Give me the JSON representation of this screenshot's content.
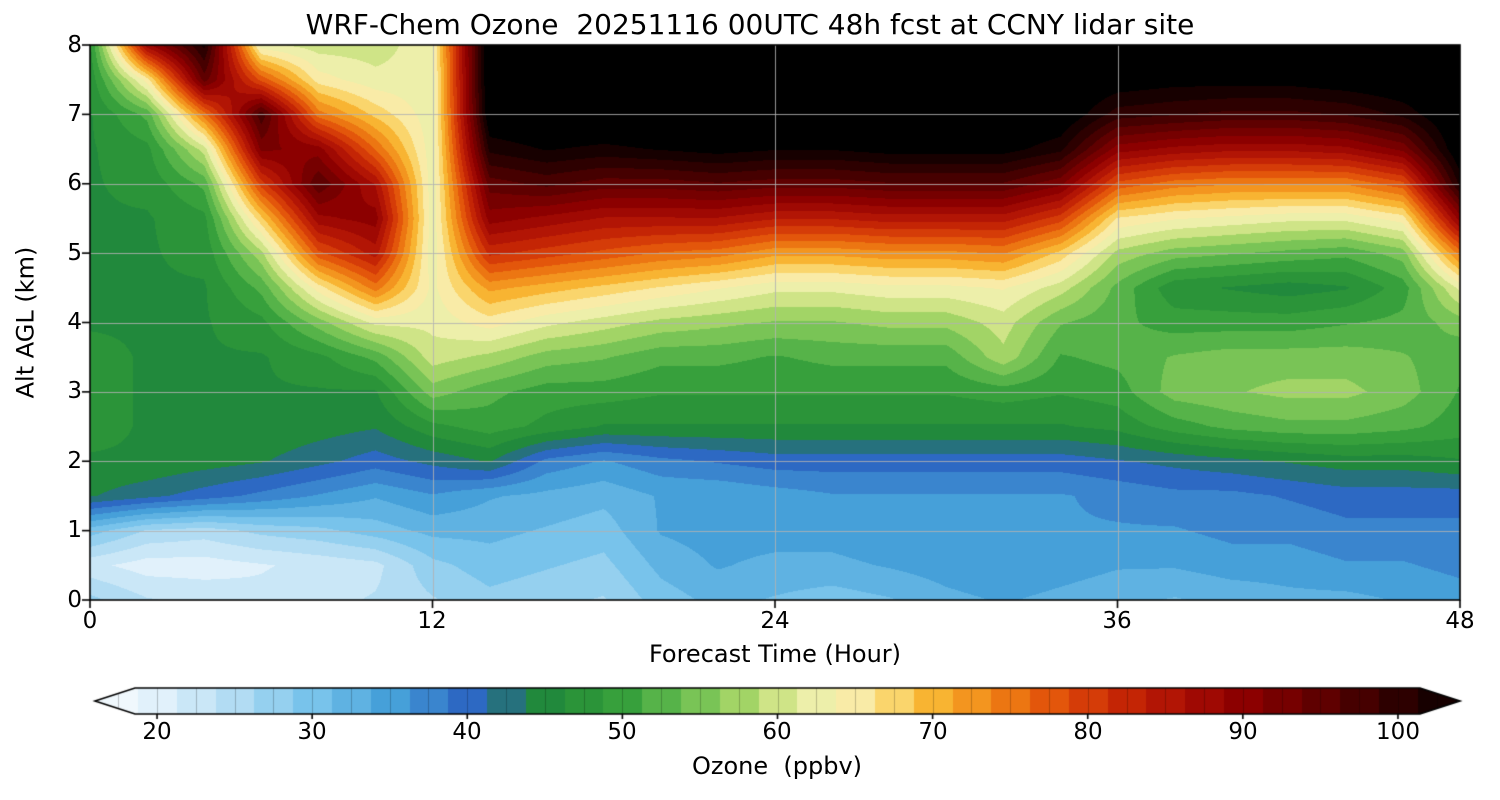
{
  "chart_data": {
    "type": "heatmap",
    "title": "WRF-Chem Ozone  20251116 00UTC 48h fcst at CCNY lidar site",
    "xlabel": "Forecast Time (Hour)",
    "ylabel": "Alt AGL (km)",
    "colorbar_label": "Ozone  (ppbv)",
    "x_range": [
      0,
      48
    ],
    "y_range": [
      0,
      8
    ],
    "x_ticks": [
      0,
      12,
      24,
      36,
      48
    ],
    "y_ticks": [
      0,
      1,
      2,
      3,
      4,
      5,
      6,
      7,
      8
    ],
    "colorbar_ticks": [
      20,
      30,
      40,
      50,
      60,
      70,
      80,
      90,
      100
    ],
    "colorbar_range": [
      16,
      104
    ],
    "contour_interval_ppbv": 2.5,
    "grid_on": true,
    "grid": {
      "hours": [
        0,
        2,
        4,
        6,
        8,
        10,
        12,
        14,
        16,
        18,
        20,
        22,
        24,
        26,
        28,
        30,
        32,
        34,
        36,
        38,
        40,
        42,
        44,
        46,
        48
      ],
      "altitudes_km": [
        0,
        0.5,
        1,
        1.5,
        2,
        2.5,
        3,
        3.5,
        4,
        4.5,
        5,
        5.5,
        6,
        6.5,
        7,
        7.5,
        8
      ],
      "ozone_ppbv": [
        [
          27,
          22,
          30,
          44,
          46,
          47,
          47,
          47,
          46,
          46,
          46,
          46,
          46,
          46,
          46,
          47,
          48
        ],
        [
          24,
          20,
          26,
          42,
          46,
          46,
          46,
          46,
          46,
          46,
          46,
          46,
          47,
          48,
          52,
          65,
          88
        ],
        [
          23,
          20,
          25,
          40,
          45,
          46,
          46,
          46,
          46,
          46,
          47,
          48,
          52,
          60,
          75,
          95,
          102
        ],
        [
          22,
          21,
          27,
          38,
          44,
          46,
          46,
          46,
          48,
          52,
          58,
          68,
          80,
          92,
          98,
          78,
          62
        ],
        [
          23,
          22,
          28,
          36,
          42,
          45,
          46,
          48,
          55,
          65,
          78,
          88,
          96,
          90,
          75,
          65,
          60
        ],
        [
          24,
          23,
          30,
          34,
          40,
          44,
          46,
          52,
          62,
          75,
          85,
          90,
          86,
          76,
          68,
          62,
          60
        ],
        [
          26,
          28,
          32,
          36,
          42,
          48,
          55,
          60,
          62,
          63,
          62,
          62,
          62,
          62,
          62,
          62,
          63
        ],
        [
          28,
          30,
          32,
          34,
          44,
          50,
          52,
          58,
          65,
          72,
          82,
          90,
          95,
          102,
          107,
          108,
          108
        ],
        [
          27,
          29,
          31,
          33,
          38,
          48,
          50,
          55,
          62,
          70,
          80,
          88,
          97,
          104,
          108,
          108,
          108
        ],
        [
          26,
          28,
          30,
          32,
          36,
          46,
          50,
          54,
          60,
          68,
          78,
          86,
          95,
          103,
          108,
          108,
          108
        ],
        [
          30,
          32,
          34,
          34,
          38,
          46,
          49,
          52,
          58,
          66,
          76,
          86,
          95,
          104,
          108,
          108,
          108
        ],
        [
          32,
          34,
          35,
          34,
          39,
          46,
          49,
          52,
          57,
          64,
          75,
          86,
          96,
          105,
          108,
          108,
          108
        ],
        [
          31,
          33,
          35,
          35,
          40,
          46,
          49,
          51,
          56,
          62,
          72,
          84,
          95,
          104,
          108,
          108,
          108
        ],
        [
          30,
          33,
          35,
          36,
          40,
          46,
          49,
          52,
          56,
          62,
          72,
          84,
          95,
          104,
          108,
          108,
          108
        ],
        [
          31,
          34,
          36,
          36,
          40,
          46,
          49,
          52,
          57,
          63,
          73,
          85,
          96,
          105,
          108,
          108,
          108
        ],
        [
          33,
          35,
          36,
          36,
          40,
          46,
          49,
          52,
          57,
          63,
          73,
          85,
          96,
          105,
          108,
          108,
          108
        ],
        [
          34,
          36,
          36,
          36,
          40,
          46,
          50,
          58,
          60,
          64,
          74,
          85,
          96,
          105,
          108,
          108,
          108
        ],
        [
          33,
          35,
          36,
          36,
          40,
          46,
          49,
          51,
          54,
          60,
          68,
          80,
          92,
          102,
          107,
          108,
          108
        ],
        [
          32,
          34,
          36,
          37,
          41,
          47,
          50,
          52,
          52,
          53,
          58,
          66,
          78,
          90,
          100,
          106,
          108
        ],
        [
          31,
          34,
          36,
          38,
          42,
          50,
          55,
          54,
          50,
          47,
          55,
          64,
          75,
          88,
          99,
          105,
          108
        ],
        [
          32,
          35,
          37,
          38,
          43,
          52,
          56,
          55,
          50,
          46,
          54,
          63,
          74,
          87,
          98,
          105,
          108
        ],
        [
          33,
          35,
          37,
          39,
          44,
          53,
          57,
          55,
          50,
          45,
          53,
          62,
          74,
          87,
          98,
          105,
          108
        ],
        [
          33,
          36,
          38,
          40,
          45,
          53,
          57,
          55,
          51,
          46,
          52,
          62,
          74,
          88,
          99,
          106,
          108
        ],
        [
          34,
          36,
          38,
          40,
          45,
          52,
          55,
          54,
          52,
          50,
          55,
          65,
          78,
          92,
          102,
          107,
          108
        ],
        [
          35,
          37,
          38,
          40,
          46,
          50,
          51,
          52,
          55,
          62,
          75,
          90,
          102,
          107,
          108,
          108,
          108
        ]
      ]
    },
    "colormap": [
      [
        15,
        "#ffffff"
      ],
      [
        20,
        "#e1f1fb"
      ],
      [
        25,
        "#b2dcf3"
      ],
      [
        30,
        "#78c3eb"
      ],
      [
        35,
        "#46a0d9"
      ],
      [
        40,
        "#2d69c3"
      ],
      [
        42,
        "#2d5fb4"
      ],
      [
        43,
        "#1e8246"
      ],
      [
        46,
        "#238c37"
      ],
      [
        50,
        "#37a03c"
      ],
      [
        54,
        "#69be50"
      ],
      [
        58,
        "#aad769"
      ],
      [
        61,
        "#e1eb96"
      ],
      [
        64,
        "#f8f2be"
      ],
      [
        67,
        "#fadc78"
      ],
      [
        70,
        "#f8b432"
      ],
      [
        74,
        "#f08214"
      ],
      [
        78,
        "#e1500a"
      ],
      [
        82,
        "#c82805"
      ],
      [
        86,
        "#aa0f05"
      ],
      [
        90,
        "#8c0000"
      ],
      [
        95,
        "#5f0000"
      ],
      [
        100,
        "#2d0000"
      ],
      [
        105,
        "#000000"
      ]
    ]
  }
}
